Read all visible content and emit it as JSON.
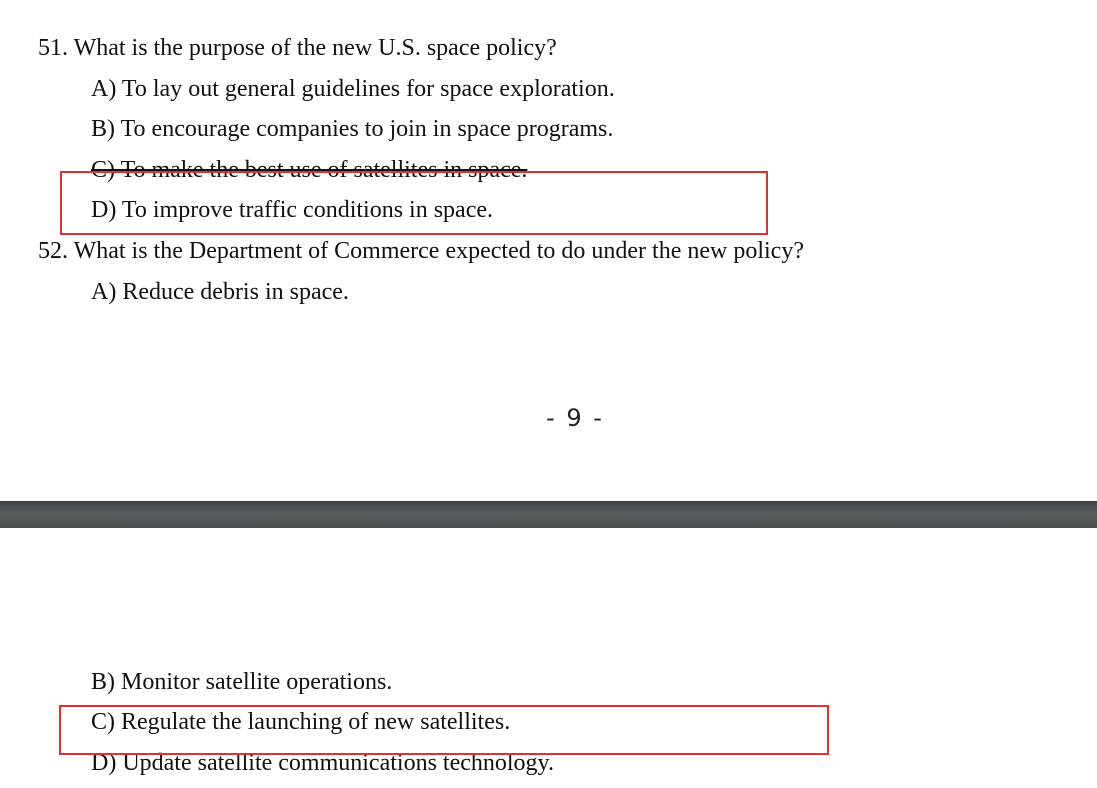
{
  "questions": [
    {
      "number_text": "51. What is the purpose of the new U.S. space policy?",
      "options": [
        "A) To lay out general guidelines for space exploration.",
        "B) To encourage companies to join in space programs.",
        "C) To make the best use of satellites in space.",
        "D) To improve traffic conditions in space."
      ]
    },
    {
      "number_text": "52. What is the Department of Commerce expected to do under the new policy?",
      "options": [
        "A) Reduce debris in space.",
        "B) Monitor satellite operations.",
        "C) Regulate the launching of new satellites.",
        "D) Update satellite communications technology."
      ]
    }
  ],
  "page_number": "- 9 -",
  "colors": {
    "annotation_box": "#e03030",
    "page_gap": "#4a4e51",
    "text": "#111111"
  }
}
